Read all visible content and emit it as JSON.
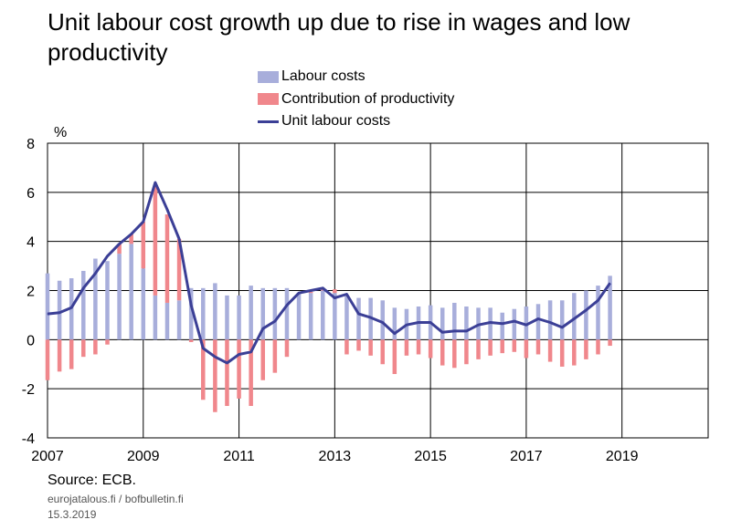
{
  "title": "Unit labour cost growth up due to rise in wages and low productivity",
  "unit_label": "%",
  "source": "Source: ECB.",
  "site": "eurojatalous.fi  /  bofbulletin.fi",
  "date": "15.3.2019",
  "legend": {
    "labour_costs": "Labour costs",
    "productivity": "Contribution of productivity",
    "ulc": "Unit labour costs"
  },
  "colors": {
    "labour_costs": "#a8aedb",
    "productivity": "#f0878c",
    "ulc": "#3b3f96",
    "grid": "#000000"
  },
  "chart_data": {
    "type": "bar",
    "title": "Unit labour cost growth up due to rise in wages and low productivity",
    "ylabel": "%",
    "ylim": [
      -4,
      8
    ],
    "yticks": [
      -4,
      -2,
      0,
      2,
      4,
      6,
      8
    ],
    "xlim": [
      2007,
      2020.8
    ],
    "xticks": [
      "2007",
      "2009",
      "2011",
      "2013",
      "2015",
      "2017",
      "2019"
    ],
    "grid": true,
    "legend_position": "top",
    "x": [
      "2007Q1",
      "2007Q2",
      "2007Q3",
      "2007Q4",
      "2008Q1",
      "2008Q2",
      "2008Q3",
      "2008Q4",
      "2009Q1",
      "2009Q2",
      "2009Q3",
      "2009Q4",
      "2010Q1",
      "2010Q2",
      "2010Q3",
      "2010Q4",
      "2011Q1",
      "2011Q2",
      "2011Q3",
      "2011Q4",
      "2012Q1",
      "2012Q2",
      "2012Q3",
      "2012Q4",
      "2013Q1",
      "2013Q2",
      "2013Q3",
      "2013Q4",
      "2014Q1",
      "2014Q2",
      "2014Q3",
      "2014Q4",
      "2015Q1",
      "2015Q2",
      "2015Q3",
      "2015Q4",
      "2016Q1",
      "2016Q2",
      "2016Q3",
      "2016Q4",
      "2017Q1",
      "2017Q2",
      "2017Q3",
      "2017Q4",
      "2018Q1",
      "2018Q2",
      "2018Q3",
      "2018Q4"
    ],
    "series": [
      {
        "name": "Labour costs",
        "kind": "bar",
        "values": [
          2.7,
          2.4,
          2.5,
          2.8,
          3.3,
          3.2,
          3.5,
          3.9,
          2.9,
          1.8,
          1.5,
          1.6,
          2.1,
          2.1,
          2.3,
          1.8,
          1.8,
          2.2,
          2.1,
          2.1,
          2.1,
          1.9,
          1.9,
          2.0,
          1.9,
          1.8,
          1.7,
          1.7,
          1.6,
          1.3,
          1.25,
          1.35,
          1.4,
          1.3,
          1.5,
          1.35,
          1.3,
          1.3,
          1.1,
          1.25,
          1.35,
          1.45,
          1.6,
          1.6,
          1.9,
          2.0,
          2.2,
          2.6
        ]
      },
      {
        "name": "Contribution of productivity",
        "kind": "bar",
        "values": [
          -1.65,
          -1.3,
          -1.2,
          -0.7,
          -0.6,
          -0.2,
          0.4,
          0.4,
          1.9,
          4.5,
          3.6,
          2.5,
          -0.1,
          -2.45,
          -2.95,
          -2.7,
          -2.4,
          -2.7,
          -1.65,
          -1.35,
          -0.7,
          0.0,
          0.05,
          0.1,
          0.15,
          -0.6,
          -0.45,
          -0.65,
          -1.0,
          -1.4,
          -0.65,
          -0.6,
          -0.75,
          -1.05,
          -1.15,
          -1.0,
          -0.8,
          -0.65,
          -0.55,
          -0.5,
          -0.75,
          -0.6,
          -0.9,
          -1.1,
          -1.05,
          -0.8,
          -0.6,
          -0.25
        ]
      },
      {
        "name": "Unit labour costs",
        "kind": "line",
        "values": [
          1.05,
          1.1,
          1.3,
          2.1,
          2.7,
          3.4,
          3.9,
          4.3,
          4.8,
          6.4,
          5.3,
          4.1,
          1.4,
          -0.35,
          -0.7,
          -0.95,
          -0.6,
          -0.5,
          0.45,
          0.75,
          1.4,
          1.9,
          2.0,
          2.1,
          1.7,
          1.85,
          1.05,
          0.9,
          0.7,
          0.25,
          0.6,
          0.7,
          0.7,
          0.3,
          0.35,
          0.35,
          0.6,
          0.7,
          0.65,
          0.75,
          0.6,
          0.85,
          0.7,
          0.5,
          0.85,
          1.2,
          1.6,
          2.3
        ]
      }
    ]
  }
}
